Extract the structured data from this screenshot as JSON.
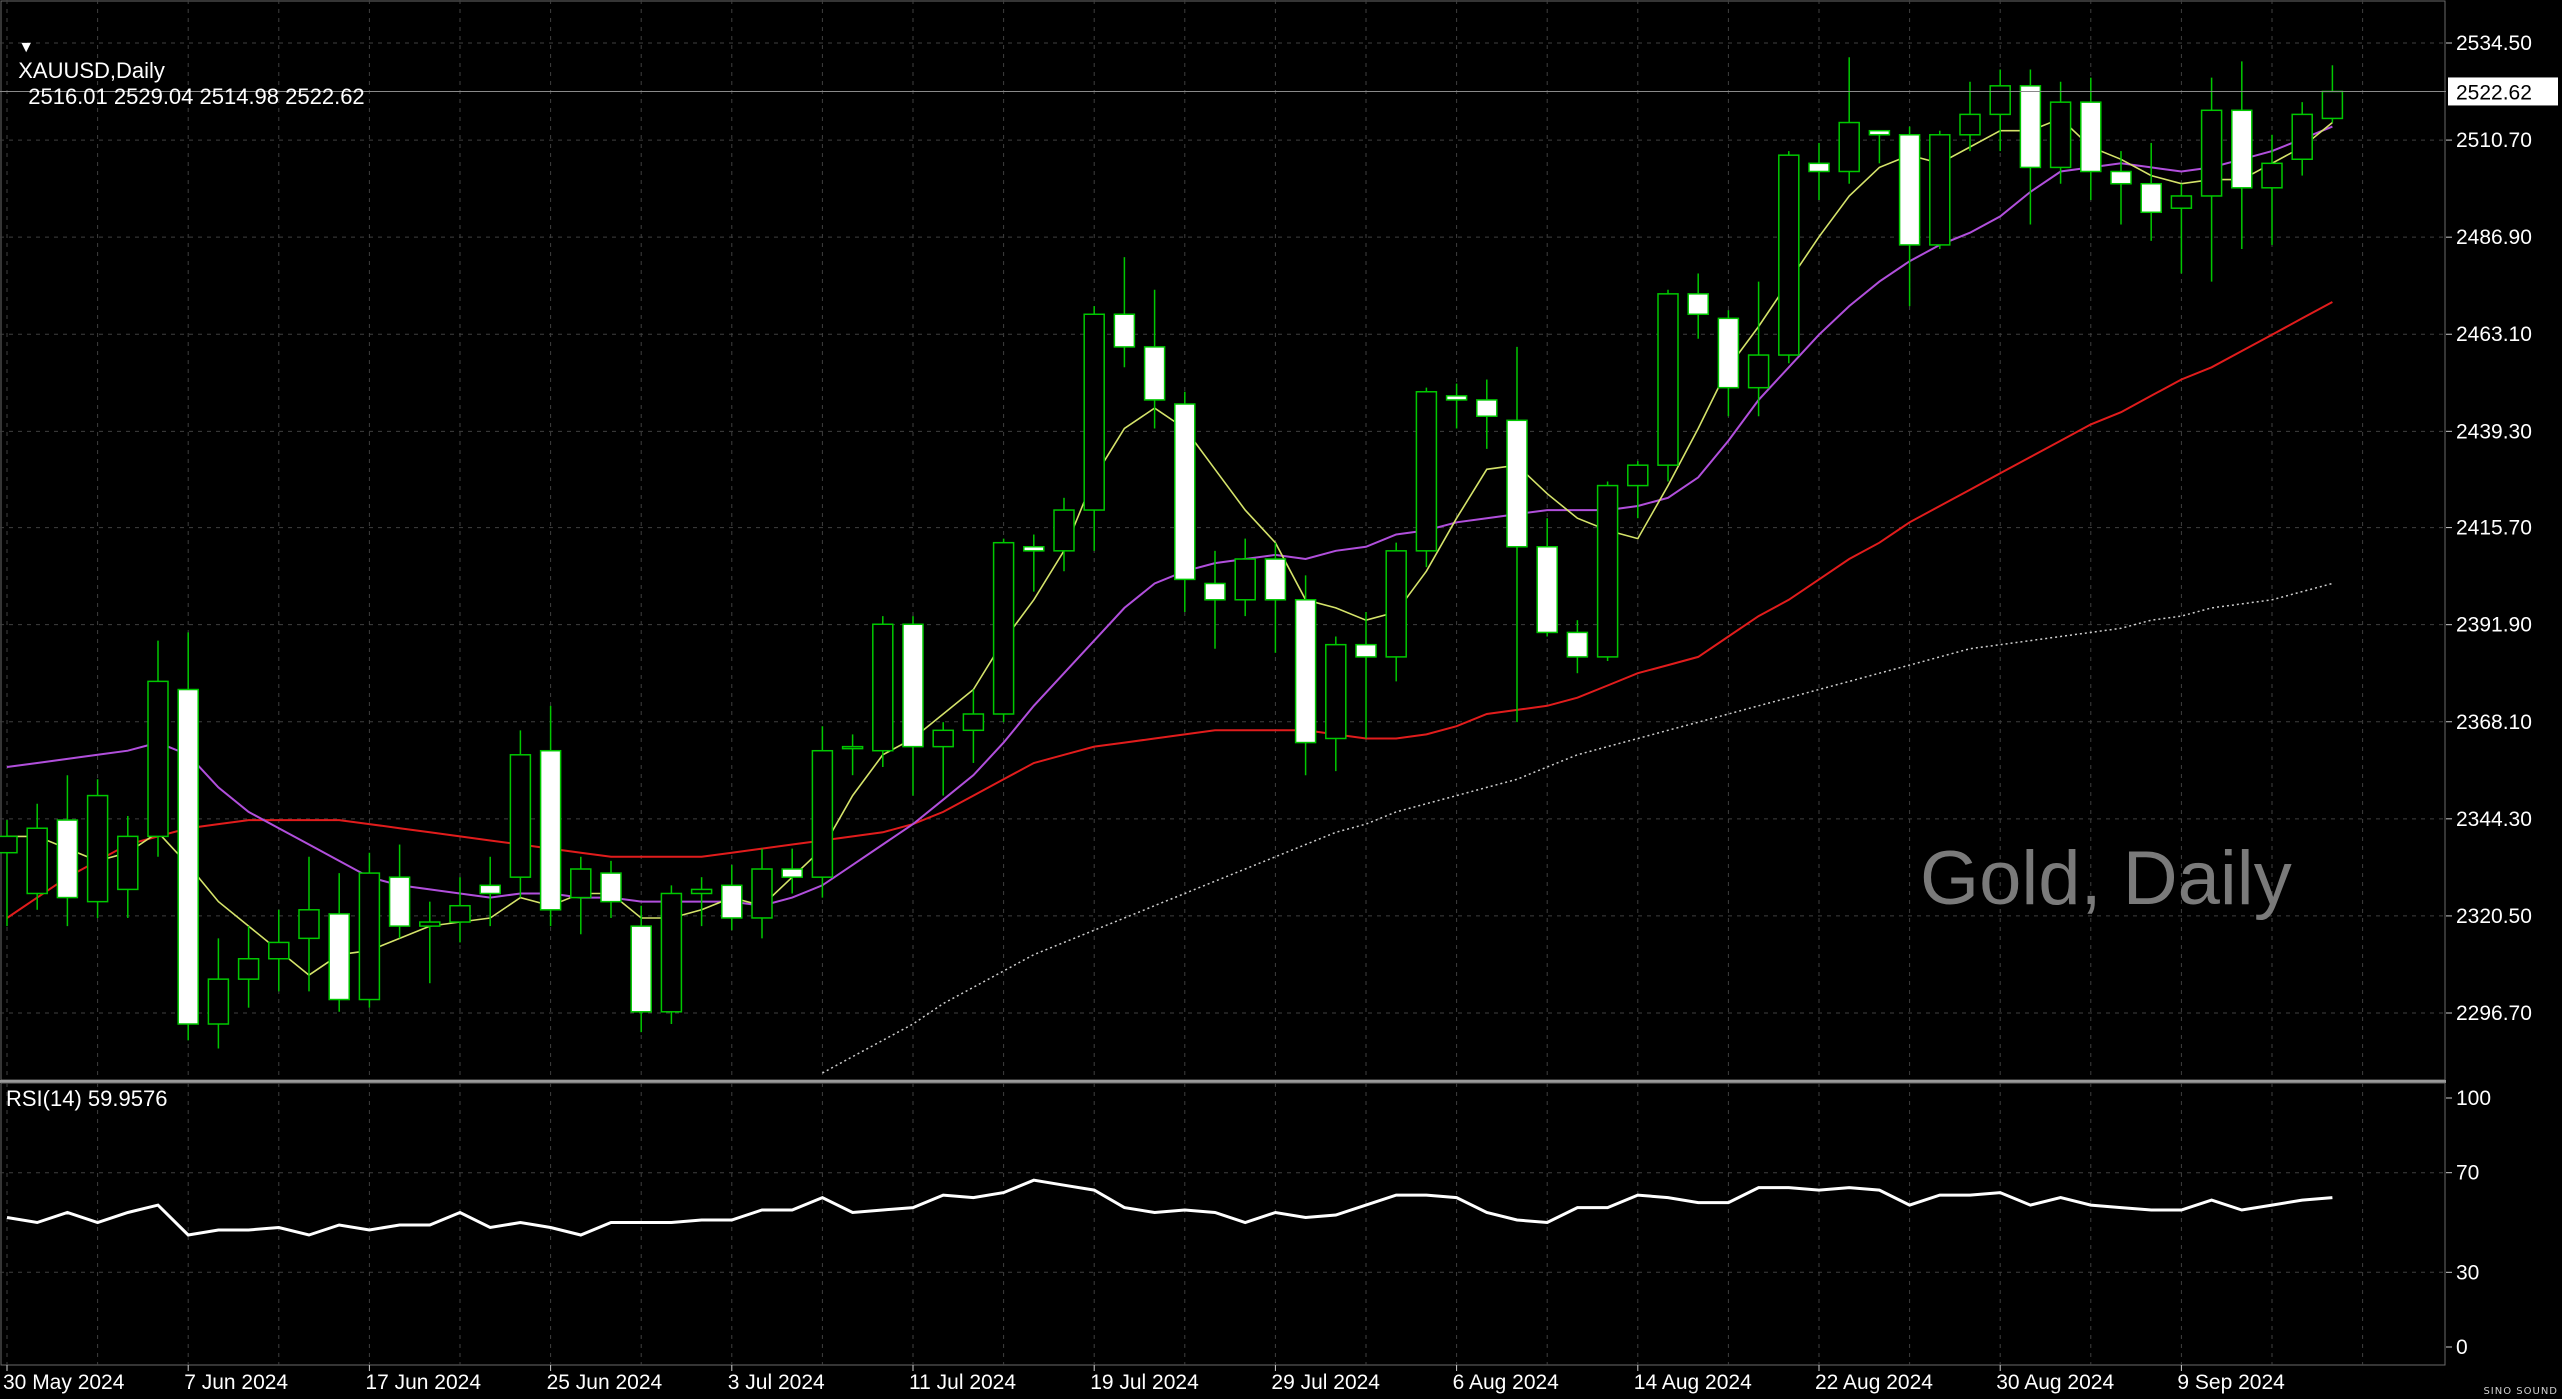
{
  "header": {
    "symbol": "XAUUSD,Daily",
    "ohlc": "2516.01 2529.04 2514.98 2522.62",
    "menu_icon": "triangle-down-icon"
  },
  "watermark": "Gold, Daily",
  "indicator": {
    "label": "RSI(14) 59.9576"
  },
  "logo": "SINO SOUND",
  "colors": {
    "background": "#000000",
    "grid": "#3f3f3f",
    "candle_up_fill": "#000000",
    "candle_down_fill": "#ffffff",
    "candle_outline": "#00c800",
    "ma_fast": "#d5e36a",
    "ma_mid": "#b14fdc",
    "ma_slow": "#e11c1c",
    "ma_long": "#cfcfcf",
    "rsi": "#ffffff",
    "axis_text": "#ffffff"
  },
  "chart_data": [
    {
      "type": "candlestick",
      "title": "XAUUSD,Daily",
      "y_ticks": [
        2534.5,
        2510.7,
        2486.9,
        2463.1,
        2439.3,
        2415.7,
        2391.9,
        2368.1,
        2344.3,
        2320.5,
        2296.7
      ],
      "ylim": [
        2280,
        2538
      ],
      "last_price": 2522.62,
      "x_tick_labels": [
        {
          "label": "30 May 2024",
          "bar": 0
        },
        {
          "label": "7 Jun 2024",
          "bar": 6
        },
        {
          "label": "17 Jun 2024",
          "bar": 12
        },
        {
          "label": "25 Jun 2024",
          "bar": 18
        },
        {
          "label": "3 Jul 2024",
          "bar": 24
        },
        {
          "label": "11 Jul 2024",
          "bar": 30
        },
        {
          "label": "19 Jul 2024",
          "bar": 36
        },
        {
          "label": "29 Jul 2024",
          "bar": 42
        },
        {
          "label": "6 Aug 2024",
          "bar": 48
        },
        {
          "label": "14 Aug 2024",
          "bar": 54
        },
        {
          "label": "22 Aug 2024",
          "bar": 60
        },
        {
          "label": "30 Aug 2024",
          "bar": 66
        },
        {
          "label": "9 Sep 2024",
          "bar": 72
        }
      ],
      "candles": [
        [
          2336.0,
          2344.0,
          2318.0,
          2340.0
        ],
        [
          2326.0,
          2348.0,
          2322.0,
          2342.0
        ],
        [
          2344.0,
          2355.0,
          2318.0,
          2325.0
        ],
        [
          2324.0,
          2354.0,
          2320.0,
          2350.0
        ],
        [
          2327.0,
          2345.0,
          2320.0,
          2340.0
        ],
        [
          2340.0,
          2388.0,
          2335.0,
          2378.0
        ],
        [
          2376.0,
          2390.0,
          2290.0,
          2294.0
        ],
        [
          2294.0,
          2315.0,
          2288.0,
          2305.0
        ],
        [
          2305.0,
          2318.0,
          2298.0,
          2310.0
        ],
        [
          2310.0,
          2322.0,
          2302.0,
          2314.0
        ],
        [
          2315.0,
          2335.0,
          2302.0,
          2322.0
        ],
        [
          2321.0,
          2331.0,
          2297.0,
          2300.0
        ],
        [
          2300.0,
          2336.0,
          2298.0,
          2331.0
        ],
        [
          2330.0,
          2338.0,
          2315.0,
          2318.0
        ],
        [
          2318.0,
          2324.0,
          2304.0,
          2319.0
        ],
        [
          2319.0,
          2330.0,
          2314.0,
          2323.0
        ],
        [
          2328.0,
          2335.0,
          2318.0,
          2326.0
        ],
        [
          2330.0,
          2366.0,
          2325.0,
          2360.0
        ],
        [
          2361.0,
          2372.0,
          2318.0,
          2322.0
        ],
        [
          2325.0,
          2335.0,
          2316.0,
          2332.0
        ],
        [
          2331.0,
          2334.0,
          2320.0,
          2324.0
        ],
        [
          2318.0,
          2323.0,
          2292.0,
          2297.0
        ],
        [
          2297.0,
          2328.0,
          2294.0,
          2326.0
        ],
        [
          2326.0,
          2330.0,
          2318.0,
          2327.0
        ],
        [
          2328.0,
          2333.0,
          2317.0,
          2320.0
        ],
        [
          2320.0,
          2337.0,
          2315.0,
          2332.0
        ],
        [
          2332.0,
          2337.0,
          2326.0,
          2330.0
        ],
        [
          2330.0,
          2367.0,
          2325.0,
          2361.0
        ],
        [
          2362.0,
          2365.0,
          2355.0,
          2362.0
        ],
        [
          2361.0,
          2394.0,
          2357.0,
          2392.0
        ],
        [
          2392.0,
          2394.0,
          2350.0,
          2362.0
        ],
        [
          2362.0,
          2368.0,
          2350.0,
          2366.0
        ],
        [
          2366.0,
          2376.0,
          2358.0,
          2370.0
        ],
        [
          2370.0,
          2413.0,
          2368.0,
          2412.0
        ],
        [
          2411.0,
          2414.0,
          2400.0,
          2410.0
        ],
        [
          2410.0,
          2423.0,
          2405.0,
          2420.0
        ],
        [
          2420.0,
          2470.0,
          2410.0,
          2468.0
        ],
        [
          2468.0,
          2482.0,
          2455.0,
          2460.0
        ],
        [
          2460.0,
          2474.0,
          2440.0,
          2447.0
        ],
        [
          2446.0,
          2449.0,
          2395.0,
          2403.0
        ],
        [
          2402.0,
          2410.0,
          2386.0,
          2398.0
        ],
        [
          2398.0,
          2413.0,
          2394.0,
          2408.0
        ],
        [
          2408.0,
          2412.0,
          2385.0,
          2398.0
        ],
        [
          2398.0,
          2404.0,
          2355.0,
          2363.0
        ],
        [
          2364.0,
          2389.0,
          2356.0,
          2387.0
        ],
        [
          2387.0,
          2395.0,
          2364.0,
          2384.0
        ],
        [
          2384.0,
          2412.0,
          2378.0,
          2410.0
        ],
        [
          2410.0,
          2450.0,
          2406.0,
          2449.0
        ],
        [
          2448.0,
          2451.0,
          2440.0,
          2447.0
        ],
        [
          2447.0,
          2452.0,
          2435.0,
          2443.0
        ],
        [
          2442.0,
          2460.0,
          2368.0,
          2411.0
        ],
        [
          2411.0,
          2418.0,
          2389.0,
          2390.0
        ],
        [
          2390.0,
          2393.0,
          2380.0,
          2384.0
        ],
        [
          2384.0,
          2427.0,
          2383.0,
          2426.0
        ],
        [
          2426.0,
          2432.0,
          2418.0,
          2431.0
        ],
        [
          2431.0,
          2474.0,
          2427.0,
          2473.0
        ],
        [
          2473.0,
          2478.0,
          2462.0,
          2468.0
        ],
        [
          2467.0,
          2469.0,
          2443.0,
          2450.0
        ],
        [
          2450.0,
          2476.0,
          2443.0,
          2458.0
        ],
        [
          2458.0,
          2508.0,
          2456.0,
          2507.0
        ],
        [
          2505.0,
          2510.0,
          2496.0,
          2503.0
        ],
        [
          2503.0,
          2531.0,
          2500.0,
          2515.0
        ],
        [
          2513.0,
          2513.0,
          2505.0,
          2512.0
        ],
        [
          2512.0,
          2514.0,
          2470.0,
          2485.0
        ],
        [
          2485.0,
          2513.0,
          2484.0,
          2512.0
        ],
        [
          2512.0,
          2525.0,
          2508.0,
          2517.0
        ],
        [
          2517.0,
          2528.0,
          2508.0,
          2524.0
        ],
        [
          2524.0,
          2528.0,
          2490.0,
          2504.0
        ],
        [
          2504.0,
          2525.0,
          2500.0,
          2520.0
        ],
        [
          2520.0,
          2526.0,
          2496.0,
          2503.0
        ],
        [
          2503.0,
          2508.0,
          2490.0,
          2500.0
        ],
        [
          2500.0,
          2510.0,
          2486.0,
          2493.0
        ],
        [
          2494.0,
          2500.0,
          2478.0,
          2497.0
        ],
        [
          2497.0,
          2526.0,
          2476.0,
          2518.0
        ],
        [
          2518.0,
          2530.0,
          2484.0,
          2499.0
        ],
        [
          2499.0,
          2512.0,
          2485.0,
          2505.0
        ],
        [
          2506.0,
          2520.0,
          2502.0,
          2517.0
        ],
        [
          2516.01,
          2529.04,
          2514.98,
          2522.62
        ]
      ],
      "ma_fast": [
        2340,
        2340,
        2337,
        2334,
        2336,
        2341,
        2333,
        2324,
        2318,
        2312,
        2306,
        2311,
        2312,
        2315,
        2318,
        2319,
        2320,
        2325,
        2323,
        2326,
        2326,
        2320,
        2320,
        2322,
        2325,
        2323,
        2330,
        2337,
        2350,
        2360,
        2364,
        2370,
        2376,
        2388,
        2398,
        2410,
        2428,
        2440,
        2445,
        2440,
        2430,
        2420,
        2412,
        2398,
        2396,
        2393,
        2395,
        2405,
        2418,
        2430,
        2431,
        2424,
        2418,
        2415,
        2413,
        2426,
        2440,
        2455,
        2465,
        2476,
        2487,
        2497,
        2504,
        2507,
        2505,
        2509,
        2513,
        2513,
        2516,
        2509,
        2506,
        2502,
        2500,
        2501,
        2501,
        2505,
        2509,
        2515
      ],
      "ma_mid": [
        2357,
        2358,
        2359,
        2360,
        2361,
        2363,
        2360,
        2352,
        2346,
        2342,
        2338,
        2334,
        2330,
        2328,
        2327,
        2326,
        2325,
        2326,
        2326,
        2325,
        2325,
        2324,
        2324,
        2324,
        2324,
        2323,
        2325,
        2328,
        2333,
        2338,
        2343,
        2349,
        2355,
        2363,
        2372,
        2380,
        2388,
        2396,
        2402,
        2405,
        2407,
        2408,
        2409,
        2408,
        2410,
        2411,
        2414,
        2415,
        2417,
        2418,
        2419,
        2420,
        2420,
        2420,
        2421,
        2423,
        2428,
        2437,
        2447,
        2455,
        2463,
        2470,
        2476,
        2481,
        2485,
        2488,
        2492,
        2498,
        2503,
        2504,
        2505,
        2504,
        2503,
        2504,
        2506,
        2508,
        2511,
        2514
      ],
      "ma_slow": [
        2320,
        2325,
        2330,
        2334,
        2338,
        2340,
        2342,
        2343,
        2344,
        2344,
        2344,
        2344,
        2343,
        2342,
        2341,
        2340,
        2339,
        2338,
        2337,
        2336,
        2335,
        2335,
        2335,
        2335,
        2336,
        2337,
        2338,
        2339,
        2340,
        2341,
        2343,
        2346,
        2350,
        2354,
        2358,
        2360,
        2362,
        2363,
        2364,
        2365,
        2366,
        2366,
        2366,
        2366,
        2365,
        2364,
        2364,
        2365,
        2367,
        2370,
        2371,
        2372,
        2374,
        2377,
        2380,
        2382,
        2384,
        2389,
        2394,
        2398,
        2403,
        2408,
        2412,
        2417,
        2421,
        2425,
        2429,
        2433,
        2437,
        2441,
        2444,
        2448,
        2452,
        2455,
        2459,
        2463,
        2467,
        2471
      ],
      "ma_long": [
        null,
        null,
        null,
        null,
        null,
        null,
        null,
        null,
        null,
        null,
        null,
        null,
        null,
        null,
        null,
        null,
        null,
        null,
        null,
        null,
        null,
        null,
        null,
        null,
        null,
        null,
        null,
        2282,
        2286,
        2290,
        2294,
        2299,
        2303,
        2307,
        2311,
        2314,
        2317,
        2320,
        2323,
        2326,
        2329,
        2332,
        2335,
        2338,
        2341,
        2343,
        2346,
        2348,
        2350,
        2352,
        2354,
        2357,
        2360,
        2362,
        2364,
        2366,
        2368,
        2370,
        2372,
        2374,
        2376,
        2378,
        2380,
        2382,
        2384,
        2386,
        2387,
        2388,
        2389,
        2390,
        2391,
        2393,
        2394,
        2396,
        2397,
        2398,
        2400,
        2402
      ]
    },
    {
      "type": "line",
      "title": "RSI(14) 59.9576",
      "y_ticks": [
        100,
        70,
        30,
        0
      ],
      "ylim": [
        0,
        100
      ],
      "last_value": 59.9576,
      "values": [
        52,
        50,
        54,
        50,
        54,
        57,
        45,
        47,
        47,
        48,
        45,
        49,
        47,
        49,
        49,
        54,
        48,
        50,
        48,
        45,
        50,
        50,
        50,
        51,
        51,
        55,
        55,
        60,
        54,
        55,
        56,
        61,
        60,
        62,
        67,
        65,
        63,
        56,
        54,
        55,
        54,
        50,
        54,
        52,
        53,
        57,
        61,
        61,
        60,
        54,
        51,
        50,
        56,
        56,
        61,
        60,
        58,
        58,
        64,
        64,
        63,
        64,
        63,
        57,
        61,
        61,
        62,
        57,
        60,
        57,
        56,
        55,
        55,
        59,
        55,
        57,
        59,
        60
      ]
    }
  ]
}
